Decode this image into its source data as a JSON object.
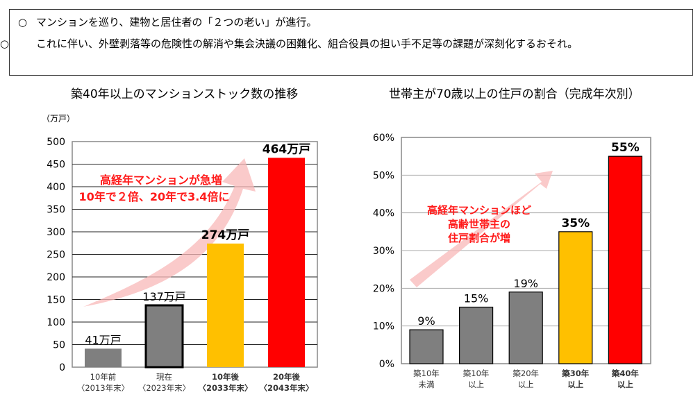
{
  "bullets": [
    {
      "marker": "○",
      "text": "マンションを巡り、建物と居住者の「２つの老い」が進行。"
    },
    {
      "marker": "○",
      "text": "これに伴い、外壁剥落等の危険性の解消や集会決議の困難化、組合役員の担い手不足等の課題が深刻化するおそれ。"
    }
  ],
  "chart_data": [
    {
      "type": "bar",
      "title": "築40年以上のマンションストック数の推移",
      "ylabel": "（万戸）",
      "ylim": [
        0,
        500
      ],
      "yticks": [
        "0",
        "50",
        "100",
        "150",
        "200",
        "250",
        "300",
        "350",
        "400",
        "450",
        "500"
      ],
      "grid": true,
      "categories": [
        [
          "10年前",
          "〈2013年末〉"
        ],
        [
          "現在",
          "〈2023年末〉"
        ],
        [
          "10年後",
          "〈2033年末〉"
        ],
        [
          "20年後",
          "〈2043年末〉"
        ]
      ],
      "values": [
        41,
        137,
        274,
        464
      ],
      "data_labels": [
        "41万戸",
        "137万戸",
        "274万戸",
        "464万戸"
      ],
      "colors": [
        "#7f7f7f",
        "#7f7f7f",
        "#ffc000",
        "#ff0000"
      ],
      "bold": [
        false,
        false,
        true,
        true
      ],
      "annotation": [
        "高経年マンションが急増",
        "10年で２倍、20年で3.4倍に"
      ]
    },
    {
      "type": "bar",
      "title": "世帯主が70歳以上の住戸の割合（完成年次別）",
      "ylim": [
        0,
        60
      ],
      "yticks": [
        "0%",
        "10%",
        "20%",
        "30%",
        "40%",
        "50%",
        "60%"
      ],
      "grid": true,
      "categories": [
        [
          "築10年",
          "未満"
        ],
        [
          "築10年",
          "以上"
        ],
        [
          "築20年",
          "以上"
        ],
        [
          "築30年",
          "以上"
        ],
        [
          "築40年",
          "以上"
        ]
      ],
      "values": [
        9,
        15,
        19,
        35,
        55
      ],
      "data_labels": [
        "9%",
        "15%",
        "19%",
        "35%",
        "55%"
      ],
      "colors": [
        "#7f7f7f",
        "#7f7f7f",
        "#7f7f7f",
        "#ffc000",
        "#ff0000"
      ],
      "bold": [
        false,
        false,
        false,
        true,
        true
      ],
      "annotation": [
        "高経年マンションほど",
        "高齢世帯主の",
        "住戸割合が増"
      ]
    }
  ]
}
